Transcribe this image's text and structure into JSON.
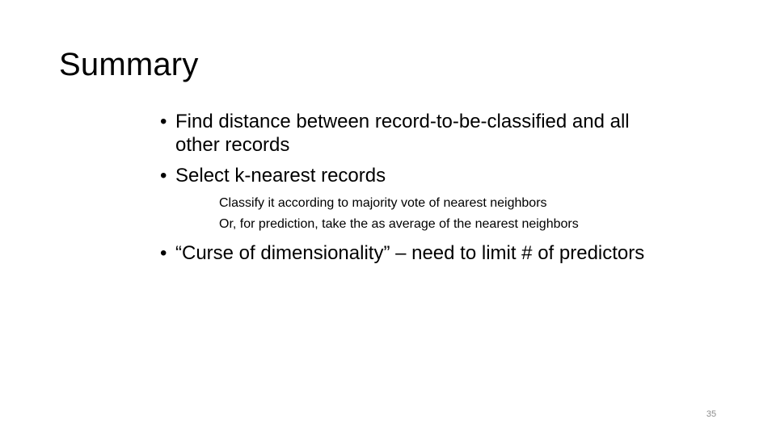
{
  "slide": {
    "title": "Summary",
    "bullets": [
      {
        "text": "Find distance between record-to-be-classified and all other records"
      },
      {
        "text": "Select k-nearest records"
      },
      {
        "text": "“Curse of dimensionality” – need to limit # of predictors"
      }
    ],
    "subitems": [
      "Classify it according to majority vote of nearest neighbors",
      "Or, for prediction, take the as average of the nearest neighbors"
    ],
    "bullet_glyph": "•",
    "page_number": "35"
  }
}
